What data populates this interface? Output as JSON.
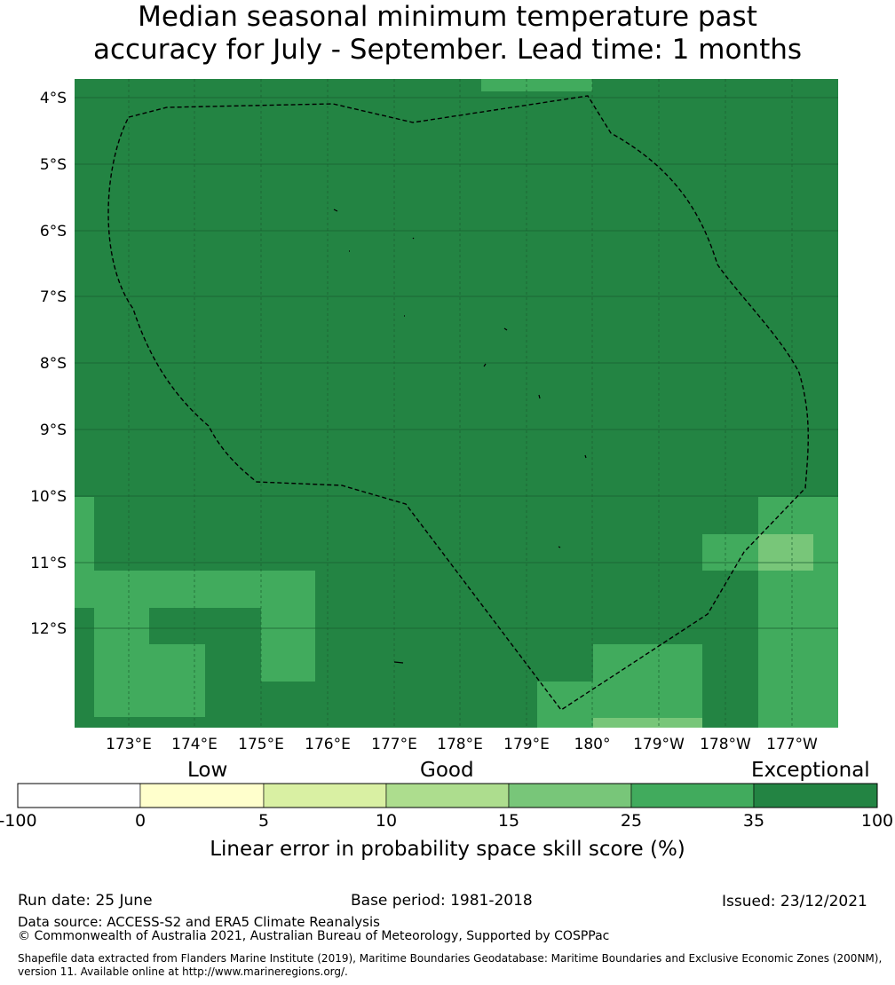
{
  "title": {
    "line1": "Median seasonal minimum temperature past",
    "line2": "accuracy for July - September. Lead time: 1 months"
  },
  "map": {
    "lat_labels": [
      "4°S",
      "5°S",
      "6°S",
      "7°S",
      "8°S",
      "9°S",
      "10°S",
      "11°S",
      "12°S"
    ],
    "lon_labels": [
      "173°E",
      "174°E",
      "175°E",
      "176°E",
      "177°E",
      "178°E",
      "179°E",
      "180°",
      "179°W",
      "178°W",
      "177°W"
    ],
    "colors": {
      "c35": "#238443",
      "c25": "#41ab5d",
      "c15": "#78c679",
      "gridline": "#1a5e30",
      "boundary": "#000000"
    }
  },
  "colorbar": {
    "categories": {
      "low": "Low",
      "good": "Good",
      "exceptional": "Exceptional"
    },
    "ticks": [
      "-100",
      "0",
      "5",
      "10",
      "15",
      "25",
      "35",
      "100"
    ],
    "colors": [
      "#ffffff",
      "#ffffcc",
      "#d9f0a3",
      "#addd8e",
      "#78c679",
      "#41ab5d",
      "#238443"
    ],
    "label": "Linear error in probability space skill score (%)"
  },
  "footer": {
    "run_date": "Run date: 25 June",
    "base_period": "Base period: 1981-2018",
    "issued": "Issued: 23/12/2021",
    "data_source": "Data source: ACCESS-S2 and ERA5 Climate Reanalysis",
    "copyright": "© Commonwealth of Australia 2021, Australian Bureau of Meteorology, Supported by COSPPac",
    "shapefile_line1": "Shapefile data extracted from Flanders Marine Institute (2019), Maritime Boundaries Geodatabase: Maritime Boundaries and Exclusive Economic Zones (200NM),",
    "shapefile_line2": "version 11. Available online at http://www.marineregions.org/."
  }
}
